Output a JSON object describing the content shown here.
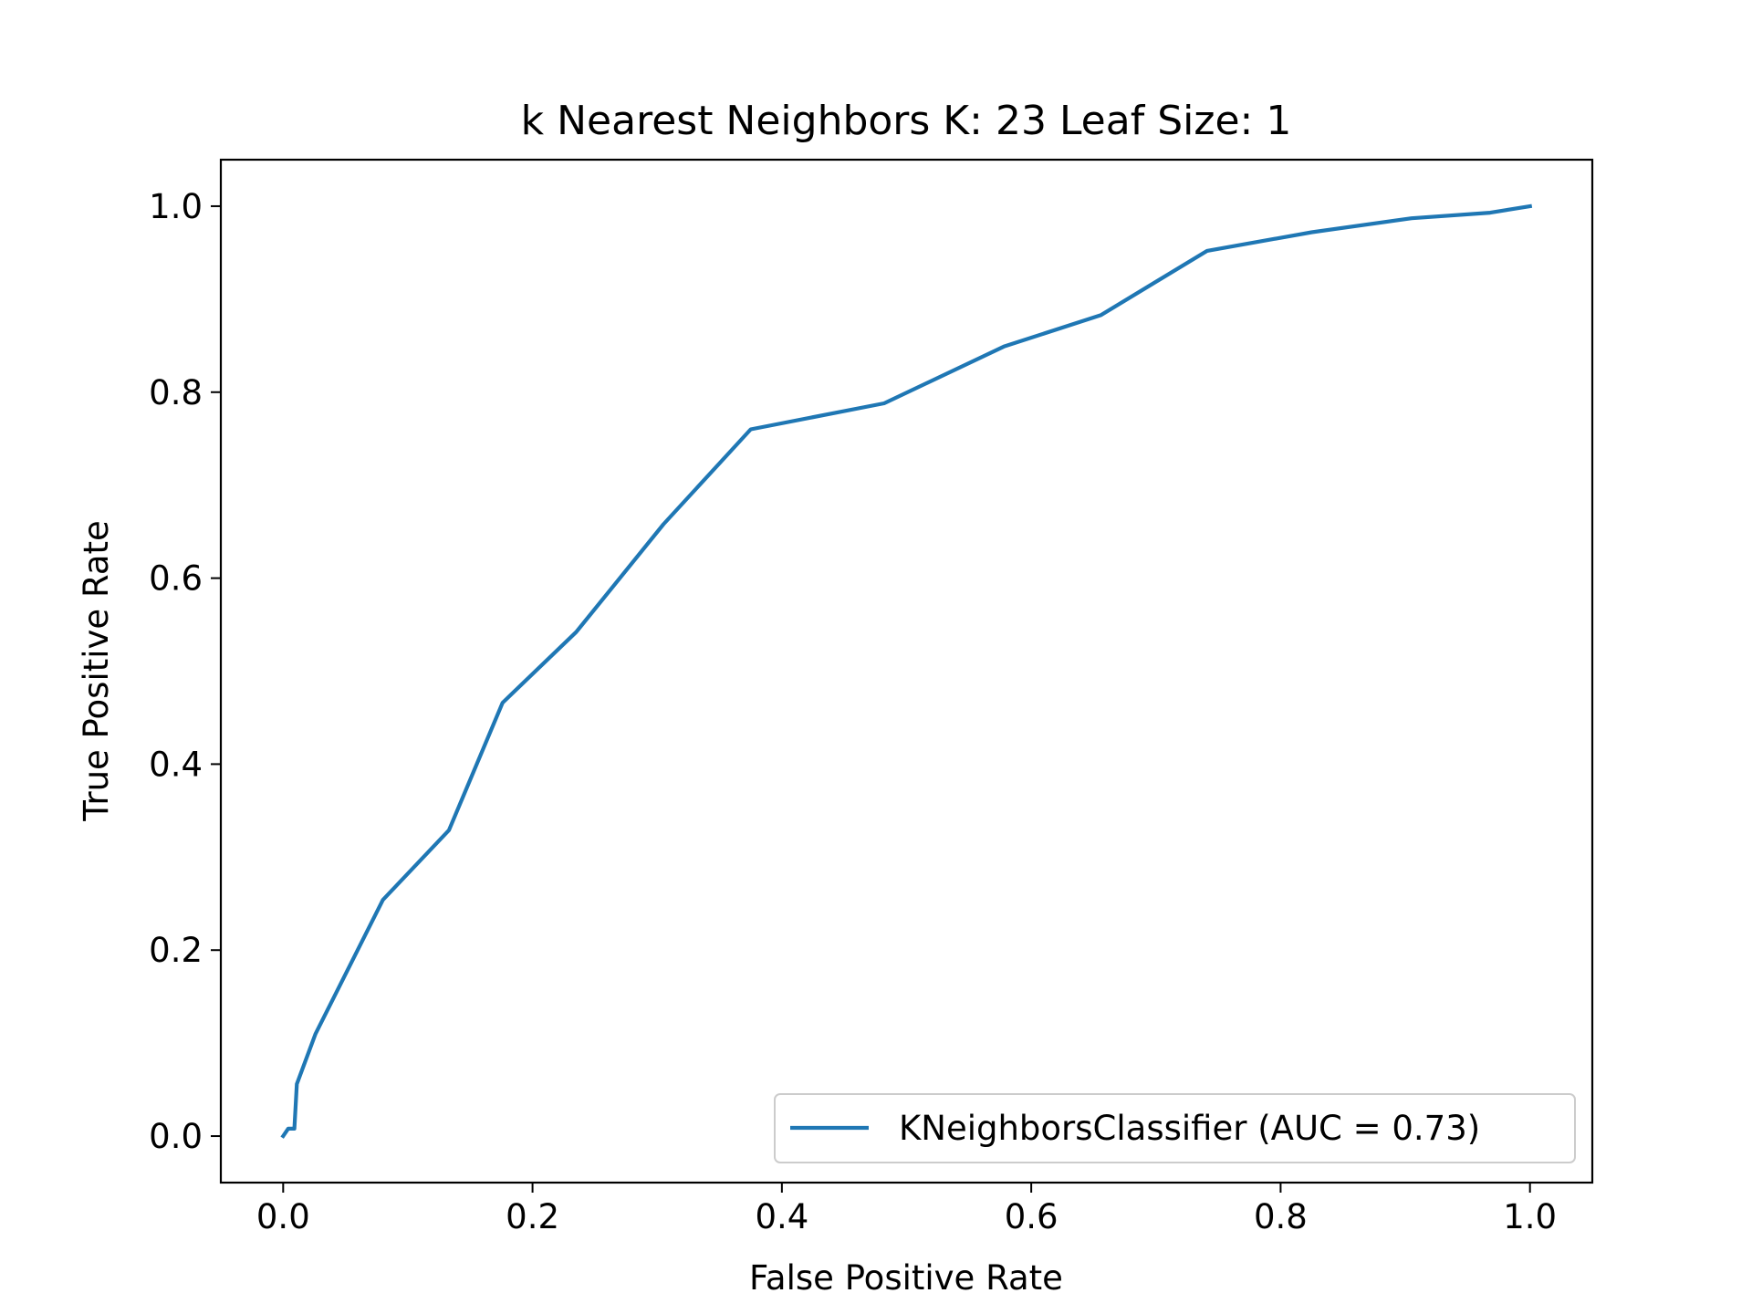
{
  "chart_data": {
    "type": "line",
    "title": "k Nearest Neighbors K: 23 Leaf Size: 1",
    "xlabel": "False Positive Rate",
    "ylabel": "True Positive Rate",
    "xlim": [
      -0.05,
      1.05
    ],
    "ylim": [
      -0.05,
      1.05
    ],
    "xticks": [
      0.0,
      0.2,
      0.4,
      0.6,
      0.8,
      1.0
    ],
    "xtick_labels": [
      "0.0",
      "0.2",
      "0.4",
      "0.6",
      "0.8",
      "1.0"
    ],
    "yticks": [
      0.0,
      0.2,
      0.4,
      0.6,
      0.8,
      1.0
    ],
    "ytick_labels": [
      "0.0",
      "0.2",
      "0.4",
      "0.6",
      "0.8",
      "1.0"
    ],
    "grid": false,
    "legend_position": "bottom-right",
    "series": [
      {
        "name": "KNeighborsClassifier (AUC = 0.73)",
        "color": "#1f77b4",
        "x": [
          0.0,
          0.004,
          0.009,
          0.011,
          0.026,
          0.08,
          0.133,
          0.176,
          0.235,
          0.305,
          0.375,
          0.482,
          0.578,
          0.656,
          0.741,
          0.825,
          0.905,
          0.968,
          1.0
        ],
        "y": [
          0.0,
          0.008,
          0.008,
          0.056,
          0.11,
          0.254,
          0.329,
          0.466,
          0.542,
          0.658,
          0.76,
          0.788,
          0.849,
          0.883,
          0.952,
          0.972,
          0.987,
          0.993,
          1.0
        ]
      }
    ]
  }
}
